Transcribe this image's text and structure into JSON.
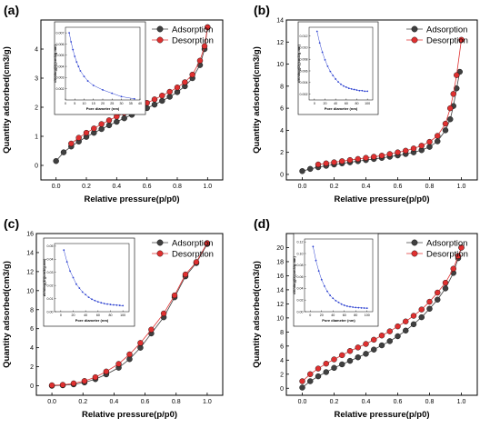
{
  "chart_data": [
    {
      "panel": "(a)",
      "type": "line",
      "xlabel": "Relative pressure(p/p0)",
      "ylabel": "Quantity adsorbed(cm3/g)",
      "xlim": [
        -0.1,
        1.1
      ],
      "ylim": [
        -0.5,
        5
      ],
      "xticks": [
        0.0,
        0.2,
        0.4,
        0.6,
        0.8,
        1.0
      ],
      "yticks": [
        0,
        1,
        2,
        3,
        4
      ],
      "series": [
        {
          "name": "Adsorption",
          "color": "#404040",
          "x": [
            0.0,
            0.05,
            0.1,
            0.15,
            0.2,
            0.25,
            0.3,
            0.35,
            0.4,
            0.45,
            0.5,
            0.55,
            0.6,
            0.65,
            0.7,
            0.75,
            0.8,
            0.85,
            0.9,
            0.95,
            0.98,
            1.0
          ],
          "y": [
            0.15,
            0.45,
            0.65,
            0.82,
            0.98,
            1.12,
            1.25,
            1.38,
            1.5,
            1.62,
            1.74,
            1.85,
            1.97,
            2.09,
            2.22,
            2.36,
            2.52,
            2.72,
            3.0,
            3.45,
            4.0,
            4.75
          ]
        },
        {
          "name": "Desorption",
          "color": "#e03030",
          "x": [
            0.1,
            0.15,
            0.2,
            0.25,
            0.3,
            0.35,
            0.4,
            0.45,
            0.5,
            0.55,
            0.6,
            0.65,
            0.7,
            0.75,
            0.8,
            0.85,
            0.9,
            0.95,
            0.98,
            1.0
          ],
          "y": [
            0.75,
            0.95,
            1.12,
            1.27,
            1.42,
            1.55,
            1.68,
            1.8,
            1.92,
            2.04,
            2.15,
            2.27,
            2.4,
            2.53,
            2.68,
            2.86,
            3.12,
            3.6,
            4.1,
            4.75
          ]
        }
      ],
      "inset": {
        "xlabel": "Pore diameter (nm)",
        "ylabel": "dV/dlog(D)(cm3/g.nm)",
        "xlim": [
          0,
          40
        ],
        "ylim": [
          0.001,
          0.0075
        ],
        "xticks": [
          0,
          5,
          10,
          15,
          20,
          25,
          30,
          35,
          40
        ],
        "yticks": [
          0.002,
          0.003,
          0.004,
          0.005,
          0.006,
          0.007
        ],
        "x": [
          2,
          3,
          4,
          5,
          6,
          7,
          8,
          10,
          12,
          15,
          20,
          25,
          30,
          37
        ],
        "y": [
          0.007,
          0.0062,
          0.0055,
          0.0049,
          0.0044,
          0.004,
          0.0036,
          0.0031,
          0.0027,
          0.0023,
          0.0019,
          0.0016,
          0.0013,
          0.0011
        ]
      }
    },
    {
      "panel": "(b)",
      "type": "line",
      "xlabel": "Relative pressure(p/p0)",
      "ylabel": "Quantity adsorbed(cm3/g)",
      "xlim": [
        -0.1,
        1.1
      ],
      "ylim": [
        -0.5,
        14
      ],
      "xticks": [
        0.0,
        0.2,
        0.4,
        0.6,
        0.8,
        1.0
      ],
      "yticks": [
        0,
        2,
        4,
        6,
        8,
        10,
        12,
        14
      ],
      "series": [
        {
          "name": "Adsorption",
          "color": "#404040",
          "x": [
            0.0,
            0.05,
            0.1,
            0.15,
            0.2,
            0.25,
            0.3,
            0.35,
            0.4,
            0.45,
            0.5,
            0.55,
            0.6,
            0.65,
            0.7,
            0.75,
            0.8,
            0.85,
            0.9,
            0.93,
            0.95,
            0.97,
            0.99
          ],
          "y": [
            0.3,
            0.5,
            0.65,
            0.78,
            0.9,
            1.0,
            1.1,
            1.2,
            1.3,
            1.4,
            1.5,
            1.6,
            1.72,
            1.85,
            2.0,
            2.2,
            2.5,
            3.0,
            4.0,
            5.0,
            6.2,
            7.8,
            9.3
          ]
        },
        {
          "name": "Desorption",
          "color": "#e03030",
          "x": [
            0.1,
            0.15,
            0.2,
            0.25,
            0.3,
            0.35,
            0.4,
            0.45,
            0.5,
            0.55,
            0.6,
            0.65,
            0.7,
            0.75,
            0.8,
            0.85,
            0.9,
            0.93,
            0.95,
            0.97,
            1.0
          ],
          "y": [
            0.9,
            1.0,
            1.1,
            1.2,
            1.3,
            1.4,
            1.5,
            1.6,
            1.7,
            1.85,
            2.0,
            2.15,
            2.35,
            2.6,
            2.95,
            3.5,
            4.6,
            6.0,
            7.3,
            9.0,
            12.2
          ]
        }
      ],
      "inset": {
        "xlabel": "Pore diameter (nm)",
        "ylabel": "dV/dlog(D)(cm3/g.nm)",
        "xlim": [
          -10,
          110
        ],
        "ylim": [
          0.001,
          0.0135
        ],
        "xticks": [
          0,
          20,
          40,
          60,
          80,
          100
        ],
        "yticks": [
          0.002,
          0.004,
          0.006,
          0.008,
          0.01,
          0.012
        ],
        "x": [
          5,
          10,
          15,
          20,
          25,
          30,
          35,
          40,
          45,
          50,
          55,
          60,
          65,
          70,
          75,
          80,
          85,
          90,
          95,
          100
        ],
        "y": [
          0.0128,
          0.0108,
          0.0092,
          0.0079,
          0.0068,
          0.0059,
          0.0052,
          0.0046,
          0.0041,
          0.0037,
          0.0034,
          0.0032,
          0.003,
          0.0029,
          0.0028,
          0.0027,
          0.0026,
          0.0026,
          0.0025,
          0.0025
        ]
      }
    },
    {
      "panel": "(c)",
      "type": "line",
      "xlabel": "Relative pressure(p/p0)",
      "ylabel": "Quantity adsorbed(cm3/g)",
      "xlim": [
        -0.1,
        1.1
      ],
      "ylim": [
        -1,
        16
      ],
      "xticks": [
        0.0,
        0.2,
        0.4,
        0.6,
        0.8,
        1.0
      ],
      "yticks": [
        0,
        2,
        4,
        6,
        8,
        10,
        12,
        14,
        16
      ],
      "series": [
        {
          "name": "Adsorption",
          "color": "#404040",
          "x": [
            0.0,
            0.07,
            0.14,
            0.21,
            0.28,
            0.35,
            0.43,
            0.5,
            0.57,
            0.64,
            0.72,
            0.79,
            0.86,
            0.93,
            1.0
          ],
          "y": [
            0.0,
            0.05,
            0.15,
            0.35,
            0.7,
            1.2,
            1.9,
            2.8,
            4.0,
            5.5,
            7.2,
            9.3,
            11.5,
            12.9,
            14.9
          ]
        },
        {
          "name": "Desorption",
          "color": "#e03030",
          "x": [
            0.0,
            0.07,
            0.14,
            0.21,
            0.28,
            0.35,
            0.43,
            0.5,
            0.57,
            0.64,
            0.72,
            0.79,
            0.86,
            0.93,
            1.0
          ],
          "y": [
            0.05,
            0.1,
            0.25,
            0.5,
            0.9,
            1.5,
            2.3,
            3.3,
            4.5,
            5.9,
            7.6,
            9.5,
            11.7,
            13.0,
            15.0
          ]
        }
      ],
      "inset": {
        "xlabel": "Pore diameter (nm)",
        "ylabel": "dV/dlog(D)(cm3/g.nm)",
        "xlim": [
          -10,
          110
        ],
        "ylim": [
          0.0,
          0.052
        ],
        "xticks": [
          0,
          20,
          40,
          60,
          80,
          100
        ],
        "yticks": [
          0.0,
          0.01,
          0.02,
          0.03,
          0.04,
          0.05
        ],
        "x": [
          5,
          10,
          15,
          20,
          25,
          30,
          35,
          40,
          45,
          50,
          55,
          60,
          65,
          70,
          75,
          80,
          85,
          90,
          95,
          100
        ],
        "y": [
          0.047,
          0.038,
          0.031,
          0.026,
          0.021,
          0.018,
          0.015,
          0.013,
          0.011,
          0.0095,
          0.0085,
          0.0075,
          0.0068,
          0.0062,
          0.0058,
          0.0055,
          0.0052,
          0.005,
          0.0048,
          0.0046
        ]
      }
    },
    {
      "panel": "(d)",
      "type": "line",
      "xlabel": "Relative pressure(p/p0)",
      "ylabel": "Quantity adsorbed(cm3/g)",
      "xlim": [
        -0.1,
        1.1
      ],
      "ylim": [
        -1,
        22
      ],
      "xticks": [
        0.0,
        0.2,
        0.4,
        0.6,
        0.8,
        1.0
      ],
      "yticks": [
        0,
        2,
        4,
        6,
        8,
        10,
        12,
        14,
        16,
        18,
        20
      ],
      "series": [
        {
          "name": "Adsorption",
          "color": "#404040",
          "x": [
            0.0,
            0.05,
            0.1,
            0.15,
            0.2,
            0.25,
            0.3,
            0.35,
            0.4,
            0.45,
            0.5,
            0.55,
            0.6,
            0.65,
            0.7,
            0.75,
            0.8,
            0.85,
            0.9,
            0.95,
            0.98,
            1.0
          ],
          "y": [
            0.1,
            1.0,
            1.7,
            2.3,
            2.9,
            3.4,
            3.9,
            4.4,
            4.9,
            5.5,
            6.1,
            6.7,
            7.4,
            8.2,
            9.1,
            10.1,
            11.3,
            12.6,
            14.2,
            16.4,
            18.5,
            20.0
          ]
        },
        {
          "name": "Desorption",
          "color": "#e03030",
          "x": [
            0.0,
            0.05,
            0.1,
            0.15,
            0.2,
            0.25,
            0.3,
            0.35,
            0.4,
            0.45,
            0.5,
            0.55,
            0.6,
            0.65,
            0.7,
            0.75,
            0.8,
            0.85,
            0.9,
            0.95,
            0.98,
            1.0
          ],
          "y": [
            1.0,
            2.0,
            2.8,
            3.5,
            4.1,
            4.7,
            5.3,
            5.8,
            6.3,
            6.9,
            7.5,
            8.1,
            8.8,
            9.5,
            10.3,
            11.2,
            12.3,
            13.6,
            15.0,
            17.0,
            18.8,
            20.0
          ]
        }
      ],
      "inset": {
        "xlabel": "Pore diameter (nm)",
        "ylabel": "dV/dlog(D)(cm3/g.nm)",
        "xlim": [
          -10,
          110
        ],
        "ylim": [
          0.0,
          0.125
        ],
        "xticks": [
          0,
          20,
          40,
          60,
          80,
          100
        ],
        "yticks": [
          0.0,
          0.02,
          0.04,
          0.06,
          0.08,
          0.1,
          0.12
        ],
        "x": [
          5,
          10,
          15,
          20,
          25,
          30,
          35,
          40,
          45,
          50,
          55,
          60,
          65,
          70,
          75,
          80,
          85,
          90,
          95,
          100
        ],
        "y": [
          0.112,
          0.088,
          0.07,
          0.055,
          0.044,
          0.035,
          0.028,
          0.023,
          0.019,
          0.016,
          0.013,
          0.011,
          0.0095,
          0.0085,
          0.0078,
          0.0072,
          0.0068,
          0.0065,
          0.0063,
          0.006
        ]
      }
    }
  ]
}
